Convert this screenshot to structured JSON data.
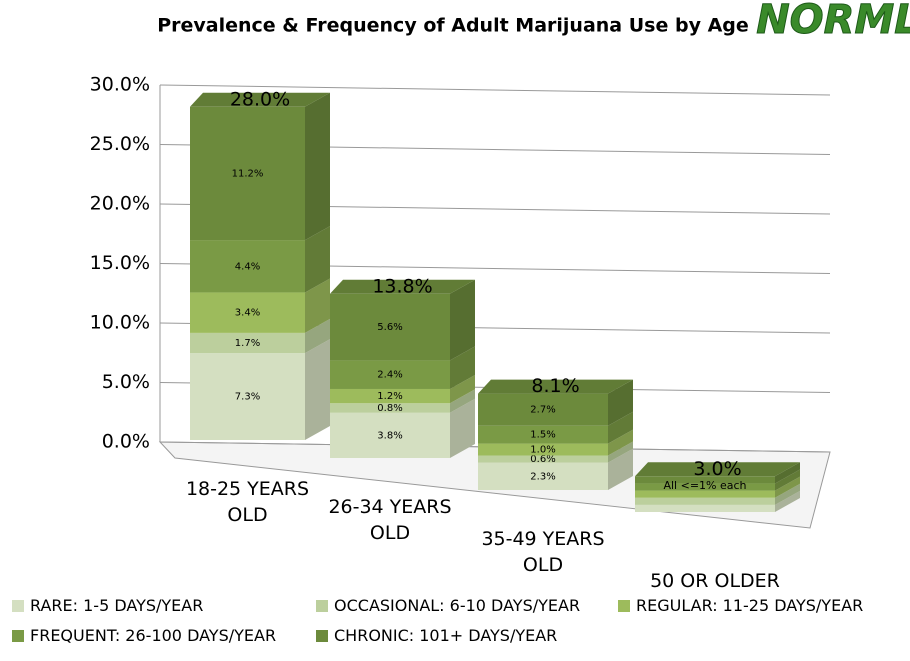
{
  "chart_data": {
    "type": "bar3d_stacked",
    "title": "Prevalence & Frequency of Adult Marijuana Use by Age",
    "logo": "NORML",
    "categories": [
      "18-25 YEARS OLD",
      "26-34 YEARS OLD",
      "35-49 YEARS OLD",
      "50 OR OLDER"
    ],
    "series": [
      {
        "name": "RARE: 1-5 DAYS/YEAR",
        "color": "#d4dfc1",
        "values": [
          7.3,
          3.8,
          2.3,
          0.6
        ],
        "value_labels": [
          "7.3%",
          "3.8%",
          "2.3%",
          null
        ]
      },
      {
        "name": "OCCASIONAL: 6-10 DAYS/YEAR",
        "color": "#bccf9d",
        "values": [
          1.7,
          0.8,
          0.6,
          0.6
        ],
        "value_labels": [
          "1.7%",
          "0.8%",
          "0.6%",
          null
        ]
      },
      {
        "name": "REGULAR: 11-25 DAYS/YEAR",
        "color": "#9dbb5c",
        "values": [
          3.4,
          1.2,
          1.0,
          0.6
        ],
        "value_labels": [
          "3.4%",
          "1.2%",
          "1.0%",
          null
        ]
      },
      {
        "name": "FREQUENT: 26-100 DAYS/YEAR",
        "color": "#7a9a45",
        "values": [
          4.4,
          2.4,
          1.5,
          0.6
        ],
        "value_labels": [
          "4.4%",
          "2.4%",
          "1.5%",
          null
        ]
      },
      {
        "name": "CHRONIC: 101+ DAYS/YEAR",
        "color": "#6c8a3c",
        "values": [
          11.2,
          5.6,
          2.7,
          0.6
        ],
        "value_labels": [
          "11.2%",
          "5.6%",
          "2.7%",
          null
        ]
      }
    ],
    "totals": [
      28.0,
      13.8,
      8.1,
      3.0
    ],
    "total_labels": [
      "28.0%",
      "13.8%",
      "8.1%",
      "3.0%"
    ],
    "annotation": "All <=1% each",
    "ylim": [
      0,
      30
    ],
    "yticks": [
      {
        "value": 0,
        "label": "0.0%"
      },
      {
        "value": 5,
        "label": "5.0%"
      },
      {
        "value": 10,
        "label": "10.0%"
      },
      {
        "value": 15,
        "label": "15.0%"
      },
      {
        "value": 20,
        "label": "20.0%"
      },
      {
        "value": 25,
        "label": "25.0%"
      },
      {
        "value": 30,
        "label": "30.0%"
      }
    ],
    "grid": true
  }
}
